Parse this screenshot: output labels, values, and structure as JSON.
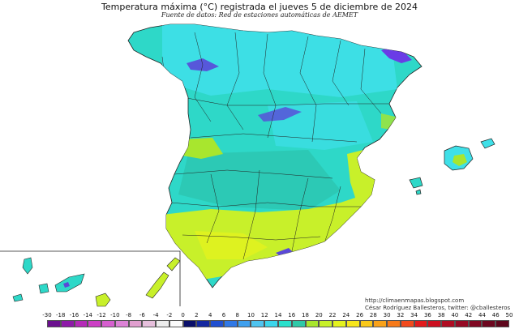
{
  "title": "Temperatura máxima (°C) registrada el jueves 5 de diciembre de 2024",
  "subtitle": "Fuente de datos: Red de estaciones automáticas de AEMET",
  "credits": [
    "http://climaenmapas.blogspot.com",
    "César Rodríguez Ballesteros, twitter: @cballesteros"
  ],
  "legend": {
    "ticks": [
      "-30",
      "-18",
      "-16",
      "-14",
      "-12",
      "-10",
      "-8",
      "-6",
      "-4",
      "-2",
      "0",
      "2",
      "4",
      "6",
      "8",
      "10",
      "12",
      "14",
      "16",
      "18",
      "20",
      "22",
      "24",
      "26",
      "28",
      "30",
      "32",
      "34",
      "36",
      "38",
      "40",
      "42",
      "44",
      "46",
      "50"
    ],
    "colors": [
      "#6a0f8e",
      "#8e1aa8",
      "#b52ab8",
      "#cc3fc5",
      "#d65fcf",
      "#dc82d6",
      "#e09fcf",
      "#e6bfdc",
      "#ececec",
      "#fafafa",
      "#0a0f6a",
      "#1428a0",
      "#1f4fd0",
      "#2f78e6",
      "#3fa0ee",
      "#4fc4f0",
      "#3cd6ec",
      "#2ae0cc",
      "#2ec9a8",
      "#a8e62e",
      "#c8f02a",
      "#e4f21e",
      "#f7e61c",
      "#f9c81a",
      "#f9a21a",
      "#f77a1a",
      "#f24a1c",
      "#e31a1c",
      "#cc1020",
      "#b00c22",
      "#960a24",
      "#800822",
      "#6e0820",
      "#5e061c"
    ],
    "colors_note": "cold-to-hot sequence"
  },
  "map": {
    "region": "Spain (peninsula, Balearic and Canary Islands)",
    "colors": {
      "dominant": "#2ed8c8",
      "cool": "#3fe0e8",
      "warm": "#c8f02a",
      "cold_peaks": "#6a3ce6",
      "sea": "#ffffff",
      "boundaries": "#222222"
    }
  }
}
